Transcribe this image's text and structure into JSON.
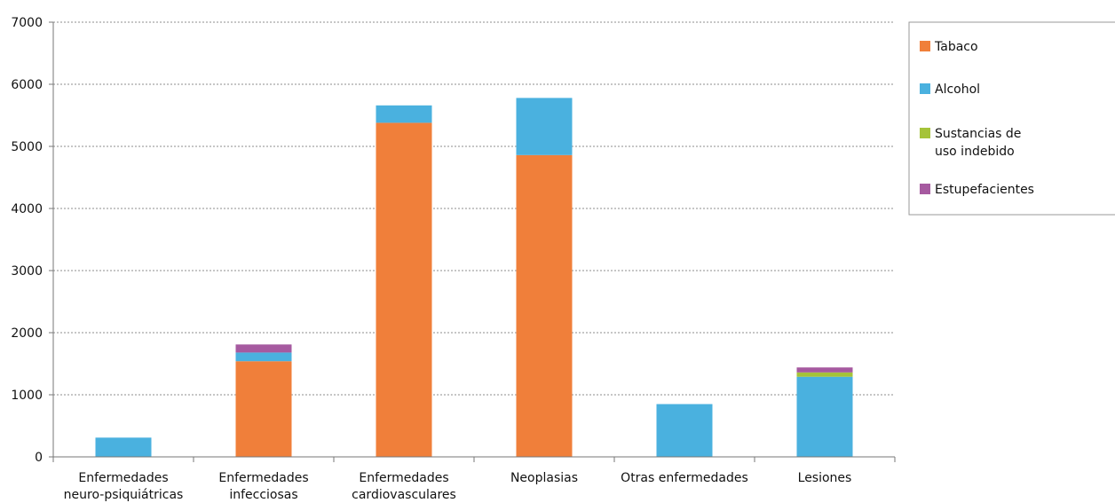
{
  "chart_data": {
    "type": "bar",
    "stacked": true,
    "categories": [
      [
        "Enfermedades",
        "neuro-psiquiátricas"
      ],
      [
        "Enfermedades",
        "infecciosas"
      ],
      [
        "Enfermedades",
        "cardiovasculares"
      ],
      [
        "Neoplasias"
      ],
      [
        "Otras enfermedades"
      ],
      [
        "Lesiones"
      ]
    ],
    "series": [
      {
        "name": "Tabaco",
        "color": "#f07f3a",
        "values": [
          0,
          1540,
          5380,
          4860,
          0,
          0
        ]
      },
      {
        "name": "Alcohol",
        "color": "#4ab1df",
        "values": [
          310,
          140,
          280,
          920,
          850,
          1290
        ]
      },
      {
        "name": "Sustancias de uso indebido",
        "legend_lines": [
          "Sustancias de",
          "uso indebido"
        ],
        "color": "#a5c339",
        "values": [
          0,
          0,
          0,
          0,
          0,
          70
        ]
      },
      {
        "name": "Estupefacientes",
        "color": "#a65aa0",
        "values": [
          0,
          130,
          0,
          0,
          0,
          80
        ]
      }
    ],
    "ylim": [
      0,
      7000
    ],
    "yticks": [
      0,
      1000,
      2000,
      3000,
      4000,
      5000,
      6000,
      7000
    ],
    "grid": true,
    "legend": "right",
    "title": "",
    "xlabel": "",
    "ylabel": ""
  }
}
